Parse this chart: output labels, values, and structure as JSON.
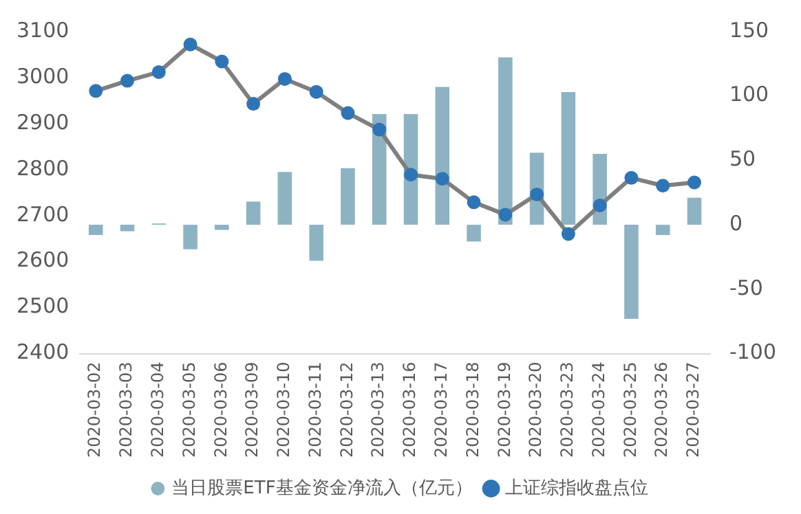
{
  "chart_data": {
    "type": "bar",
    "categories": [
      "2020-03-02",
      "2020-03-03",
      "2020-03-04",
      "2020-03-05",
      "2020-03-06",
      "2020-03-09",
      "2020-03-10",
      "2020-03-11",
      "2020-03-12",
      "2020-03-13",
      "2020-03-16",
      "2020-03-17",
      "2020-03-18",
      "2020-03-19",
      "2020-03-20",
      "2020-03-23",
      "2020-03-24",
      "2020-03-25",
      "2020-03-26",
      "2020-03-27"
    ],
    "series": [
      {
        "name": "当日股票ETF基金资金净流入（亿元）",
        "axis": "y2",
        "color": "#8db3c3",
        "values": [
          -8,
          -5,
          1,
          -19,
          -4,
          18,
          41,
          -28,
          44,
          86,
          86,
          107,
          -13,
          130,
          56,
          103,
          55,
          -73,
          -8,
          21
        ]
      },
      {
        "name": "上证综指收盘点位",
        "type": "line",
        "axis": "y",
        "color": "#7f7f7f",
        "values": [
          2971,
          2993,
          3012,
          3072,
          3035,
          2943,
          2997,
          2969,
          2923,
          2887,
          2789,
          2780,
          2729,
          2702,
          2746,
          2660,
          2722,
          2782,
          2765,
          2772
        ]
      }
    ],
    "ylim": [
      2400,
      3100
    ],
    "yticks": [
      2400,
      2500,
      2600,
      2700,
      2800,
      2900,
      3000,
      3100
    ],
    "y2lim": [
      -100,
      150
    ],
    "y2ticks": [
      -100,
      -50,
      0,
      50,
      100,
      150
    ],
    "marker": "circle",
    "legend": "bottom"
  }
}
